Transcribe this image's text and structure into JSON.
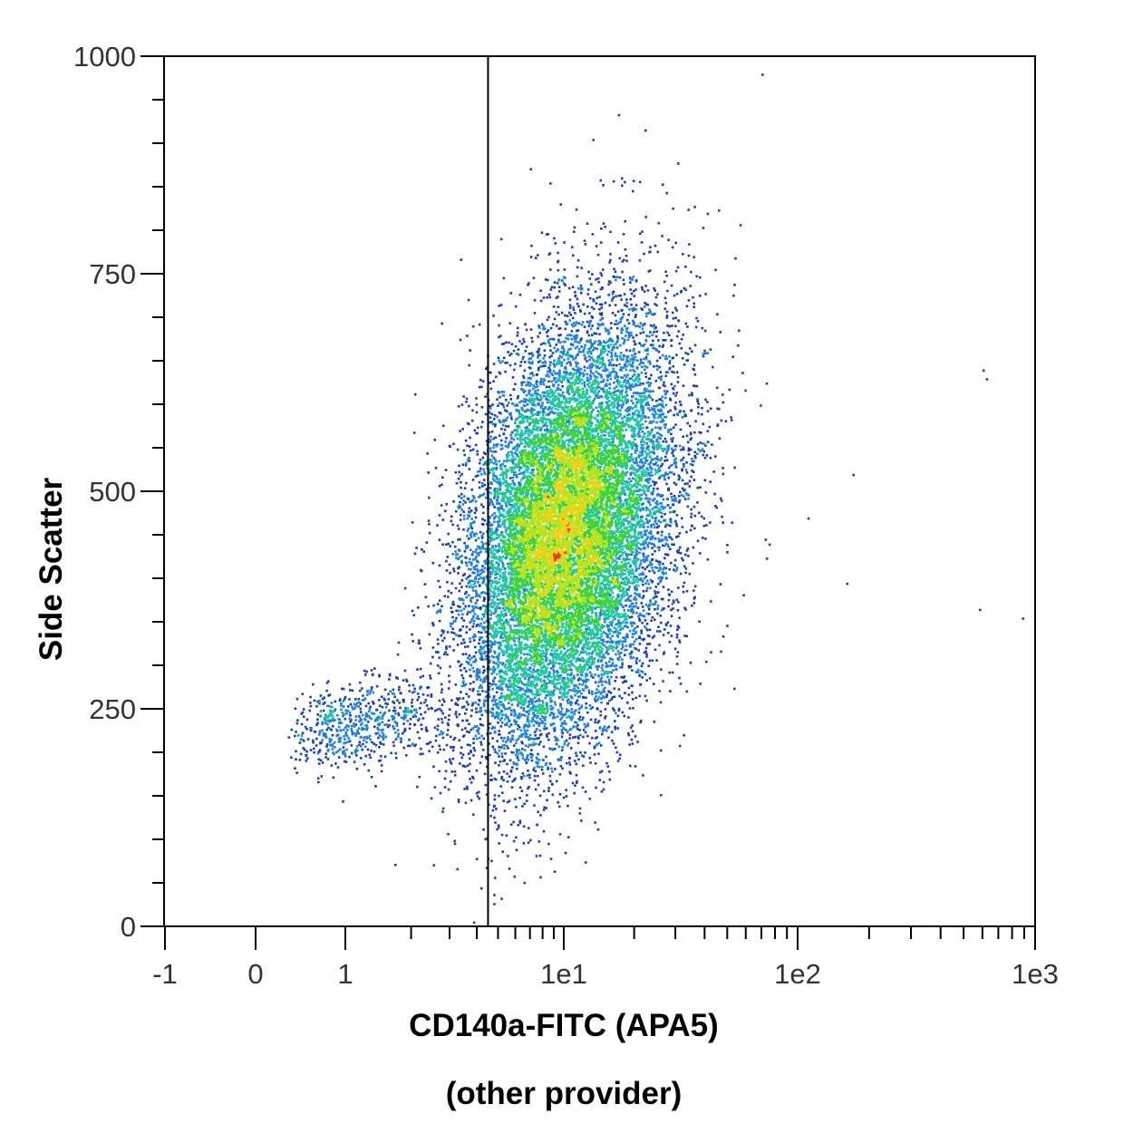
{
  "chart_data": {
    "type": "scatter",
    "subtype": "flow-cytometry-density-dot-plot",
    "title": "",
    "xlabel": "CD140a-FITC (APA5)",
    "xlabel_line2": "(other provider)",
    "ylabel": "Side Scatter",
    "x_scale": "biexponential (linear near zero, logarithmic above)",
    "x_ticks": [
      "-1",
      "0",
      "1",
      "1e1",
      "1e2",
      "1e3"
    ],
    "y_ticks": [
      "0",
      "250",
      "500",
      "750",
      "1000"
    ],
    "ylim": [
      0,
      1000
    ],
    "xlim": [
      -1,
      1000
    ],
    "grid": false,
    "legend": "none",
    "gate": {
      "type": "vertical-line",
      "x": 4.5,
      "color": "#000000"
    },
    "density_colors": [
      "#1a3fb8",
      "#1f7fe0",
      "#21c4a6",
      "#3dd13d",
      "#b6e21f",
      "#f0d21a",
      "#e23a1f"
    ],
    "populations": [
      {
        "name": "main",
        "center_x": 10,
        "center_y": 450,
        "spread_log10_x": 0.23,
        "spread_y": 115,
        "count": 16000
      },
      {
        "name": "low-side-scatter tail",
        "center_x": 1.2,
        "center_y": 235,
        "spread_log10_x": 0.2,
        "spread_y": 25,
        "count": 650
      }
    ],
    "outliers": [
      {
        "x": 600,
        "y": 640
      },
      {
        "x": 620,
        "y": 630
      },
      {
        "x": 170,
        "y": 520
      },
      {
        "x": 110,
        "y": 470
      },
      {
        "x": 75,
        "y": 440
      },
      {
        "x": 160,
        "y": 395
      },
      {
        "x": 580,
        "y": 365
      },
      {
        "x": 880,
        "y": 355
      },
      {
        "x": 70,
        "y": 980
      }
    ]
  }
}
